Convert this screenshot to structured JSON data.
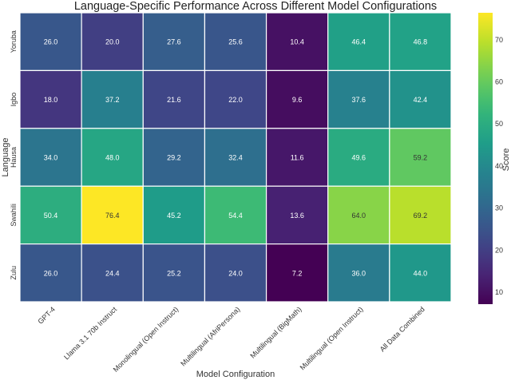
{
  "chart_data": {
    "type": "heatmap",
    "title": "Language-Specific Performance Across Different Model Configurations",
    "xlabel": "Model Configuration",
    "ylabel": "Language",
    "colorbar_label": "Score",
    "colormap": "viridis",
    "color_range": [
      7.2,
      76.4
    ],
    "colorbar_ticks": [
      10,
      20,
      30,
      40,
      50,
      60,
      70
    ],
    "columns": [
      "GPT-4",
      "Llama 3.1 70b Instruct",
      "Monolingual (Open Instruct)",
      "Multilingual (AfriPersona)",
      "Multilingual (BigMath)",
      "Multilingual (Open Instruct)",
      "All Data Combined"
    ],
    "rows": [
      "Yoruba",
      "Igbo",
      "Hausa",
      "Swahili",
      "Zulu"
    ],
    "values": [
      [
        26.0,
        20.0,
        27.6,
        25.6,
        10.4,
        46.4,
        46.8
      ],
      [
        18.0,
        37.2,
        21.6,
        22.0,
        9.6,
        37.6,
        42.4
      ],
      [
        34.0,
        48.0,
        29.2,
        32.4,
        11.6,
        49.6,
        59.2
      ],
      [
        50.4,
        76.4,
        45.2,
        54.4,
        13.6,
        64.0,
        69.2
      ],
      [
        26.0,
        24.4,
        25.2,
        24.0,
        7.2,
        36.0,
        44.0
      ]
    ]
  }
}
